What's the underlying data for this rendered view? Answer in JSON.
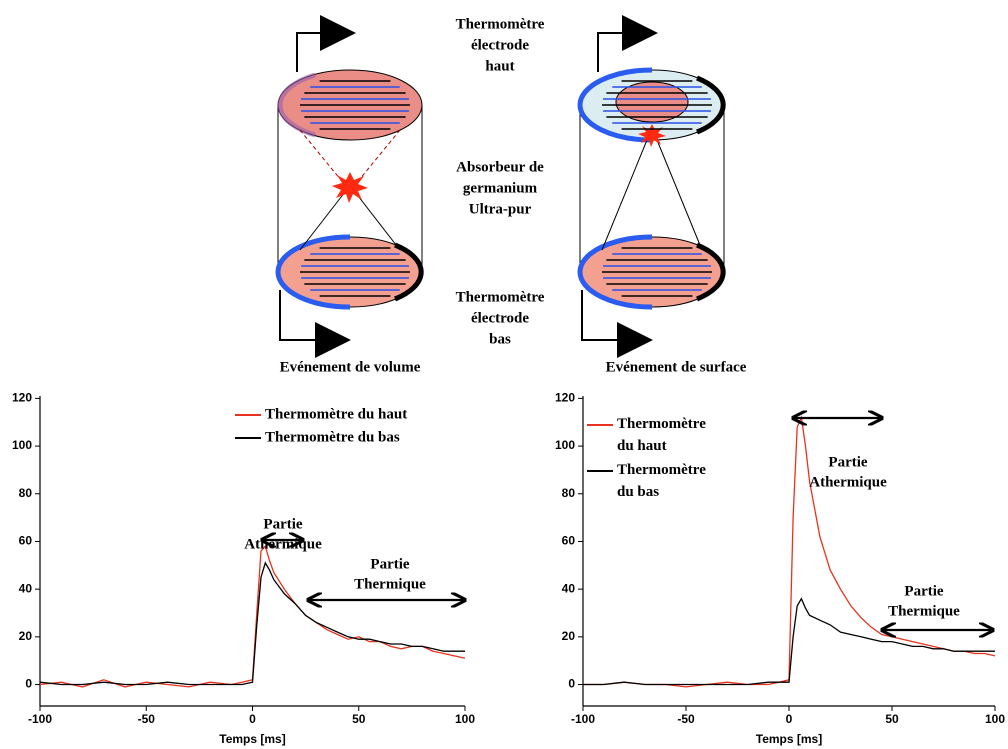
{
  "diagram": {
    "top_label": [
      "Thermomètre",
      "électrode",
      "haut"
    ],
    "middle_label": [
      "Absorbeur de",
      "germanium",
      "Ultra-pur"
    ],
    "bottom_label": [
      "Thermomètre",
      "électrode",
      "bas"
    ],
    "left_caption": "Evénement de volume",
    "right_caption": "Evénement de surface"
  },
  "chart_data": [
    {
      "type": "line",
      "xlabel": "Temps [ms]",
      "x": [
        -100,
        -90,
        -80,
        -70,
        -60,
        -50,
        -40,
        -30,
        -20,
        -10,
        -5,
        0,
        2,
        4,
        6,
        8,
        10,
        15,
        20,
        25,
        30,
        35,
        40,
        45,
        50,
        55,
        60,
        65,
        70,
        75,
        80,
        85,
        90,
        95,
        100
      ],
      "series": [
        {
          "name": "Thermomètre du haut",
          "color": "#e8321e",
          "values": [
            0,
            1,
            -1,
            2,
            -1,
            1,
            0,
            -1,
            1,
            0,
            1,
            2,
            30,
            56,
            58,
            52,
            47,
            40,
            34,
            29,
            26,
            23,
            21,
            19,
            20,
            18,
            18,
            16,
            15,
            16,
            16,
            14,
            13,
            12,
            11
          ]
        },
        {
          "name": "Thermomètre du bas",
          "color": "#000000",
          "values": [
            1,
            0,
            0,
            1,
            0,
            0,
            1,
            0,
            0,
            0,
            0,
            1,
            25,
            45,
            51,
            48,
            44,
            38,
            34,
            29,
            26,
            24,
            22,
            20,
            19,
            19,
            18,
            17,
            17,
            16,
            16,
            15,
            14,
            14,
            14
          ]
        }
      ],
      "xlim": [
        -100,
        100
      ],
      "xticks": [
        -100,
        -50,
        0,
        50,
        100
      ],
      "ylim": [
        -9,
        121
      ],
      "yticks": [
        0,
        20,
        40,
        60,
        80,
        100,
        120
      ],
      "legend": "upper right",
      "annotations": [
        [
          "Partie",
          "Athermique"
        ],
        [
          "Partie",
          "Thermique"
        ]
      ]
    },
    {
      "type": "line",
      "xlabel": "Temps [ms]",
      "x": [
        -100,
        -90,
        -80,
        -70,
        -60,
        -50,
        -40,
        -30,
        -20,
        -10,
        -5,
        0,
        2,
        4,
        6,
        8,
        10,
        15,
        20,
        25,
        30,
        35,
        40,
        45,
        50,
        55,
        60,
        65,
        70,
        75,
        80,
        85,
        90,
        95,
        100
      ],
      "series": [
        {
          "name": "Thermomètre du haut",
          "color": "#e8321e",
          "values": [
            0,
            0,
            1,
            0,
            0,
            -1,
            0,
            1,
            0,
            0,
            1,
            2,
            70,
            108,
            112,
            100,
            85,
            62,
            48,
            40,
            33,
            28,
            24,
            21,
            20,
            19,
            18,
            17,
            16,
            15,
            14,
            14,
            13,
            13,
            12
          ]
        },
        {
          "name": "Thermomètre du bas",
          "color": "#000000",
          "values": [
            0,
            0,
            1,
            0,
            0,
            0,
            0,
            0,
            0,
            1,
            1,
            1,
            20,
            33,
            36,
            32,
            29,
            27,
            25,
            22,
            21,
            20,
            19,
            18,
            18,
            17,
            16,
            16,
            15,
            15,
            14,
            14,
            14,
            14,
            14
          ]
        }
      ],
      "xlim": [
        -100,
        100
      ],
      "xticks": [
        -100,
        -50,
        0,
        50,
        100
      ],
      "ylim": [
        -9,
        121
      ],
      "yticks": [
        0,
        20,
        40,
        60,
        80,
        100,
        120
      ],
      "legend": "upper left",
      "annotations": [
        [
          "Partie",
          "Athermique"
        ],
        [
          "Partie",
          "Thermique"
        ]
      ]
    }
  ]
}
